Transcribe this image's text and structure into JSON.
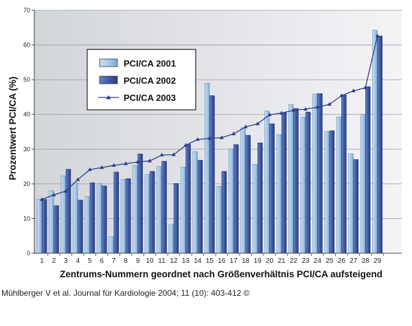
{
  "chart_data": {
    "type": "bar",
    "categories": [
      "1",
      "2",
      "3",
      "4",
      "5",
      "6",
      "7",
      "8",
      "9",
      "10",
      "11",
      "12",
      "13",
      "14",
      "15",
      "16",
      "17",
      "18",
      "19",
      "20",
      "21",
      "22",
      "23",
      "24",
      "25",
      "26",
      "27",
      "28",
      "29"
    ],
    "series": [
      {
        "name": "PCI/CA 2001",
        "kind": "bar",
        "color": "#a9cbe8",
        "values": [
          15.5,
          18,
          22.3,
          20.3,
          16.3,
          20.1,
          4.8,
          21.3,
          25.3,
          22.7,
          25,
          8.3,
          24.8,
          29.3,
          49,
          19.3,
          30.1,
          36.2,
          25.6,
          41,
          34.2,
          42.9,
          39.3,
          45.9,
          35.1,
          39.3,
          28.7,
          40.1,
          64.3
        ]
      },
      {
        "name": "PCI/CA 2002",
        "kind": "bar",
        "color": "#3f5da8",
        "values": [
          15.5,
          13.7,
          24.2,
          15.3,
          20.3,
          19.4,
          23.4,
          21.5,
          28.6,
          23.6,
          26.5,
          20.1,
          31.4,
          26.8,
          45.4,
          23.6,
          31.3,
          34,
          31.8,
          37.3,
          40.5,
          41.7,
          40.7,
          46,
          35.3,
          45.6,
          27,
          48,
          62.6
        ]
      },
      {
        "name": "PCI/CA 2003",
        "kind": "line",
        "color": "#2e3d8f",
        "values": [
          15.5,
          16.8,
          17.9,
          21.2,
          24.1,
          24.7,
          25.3,
          25.8,
          26.3,
          26.6,
          28.3,
          28.4,
          31.1,
          32.8,
          33.1,
          33.3,
          34.4,
          36.4,
          37.3,
          39.9,
          40.4,
          41.2,
          41.5,
          42.1,
          42.9,
          45.4,
          46.8,
          47.7,
          62.6
        ]
      }
    ],
    "ylim": [
      0,
      70
    ],
    "yticks": [
      "0",
      "10",
      "20",
      "30",
      "40",
      "50",
      "60",
      "70"
    ],
    "xlabel": "Zentrums-Nummern geordnet nach Größenverhältnis PCI/CA aufsteigend",
    "ylabel": "Prozentwert  PCI/CA  (%)",
    "grid": "horizontal",
    "legend_position": "upper-left"
  },
  "footer": {
    "citation": "Mühlberger V et al. Journal für Kardiologie 2004; 11 (10): 403-412 ©"
  }
}
